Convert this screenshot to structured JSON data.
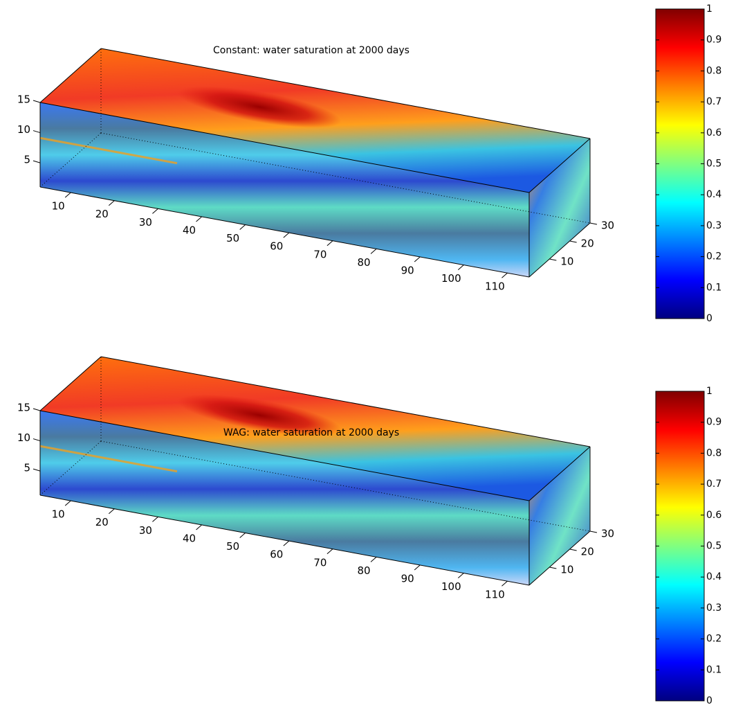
{
  "chart_data": [
    {
      "type": "volume",
      "title": "Constant: water saturation at 2000 days",
      "xlim": [
        3,
        115
      ],
      "ylim": [
        0,
        30
      ],
      "zlim": [
        1,
        15
      ],
      "xticks": [
        10,
        20,
        30,
        40,
        50,
        60,
        70,
        80,
        90,
        100,
        110
      ],
      "yticks": [
        10,
        20,
        30
      ],
      "zticks": [
        5,
        10,
        15
      ],
      "clim": [
        0,
        1
      ],
      "cticks": [
        0,
        0.1,
        0.2,
        0.3,
        0.4,
        0.5,
        0.6,
        0.7,
        0.8,
        0.9,
        1
      ],
      "colormap": "jet"
    },
    {
      "type": "volume",
      "title": "WAG: water saturation at 2000 days",
      "xlim": [
        3,
        115
      ],
      "ylim": [
        0,
        30
      ],
      "zlim": [
        1,
        15
      ],
      "xticks": [
        10,
        20,
        30,
        40,
        50,
        60,
        70,
        80,
        90,
        100,
        110
      ],
      "yticks": [
        10,
        20,
        30
      ],
      "zticks": [
        5,
        10,
        15
      ],
      "clim": [
        0,
        1
      ],
      "cticks": [
        0,
        0.1,
        0.2,
        0.3,
        0.4,
        0.5,
        0.6,
        0.7,
        0.8,
        0.9,
        1
      ],
      "colormap": "jet"
    }
  ]
}
